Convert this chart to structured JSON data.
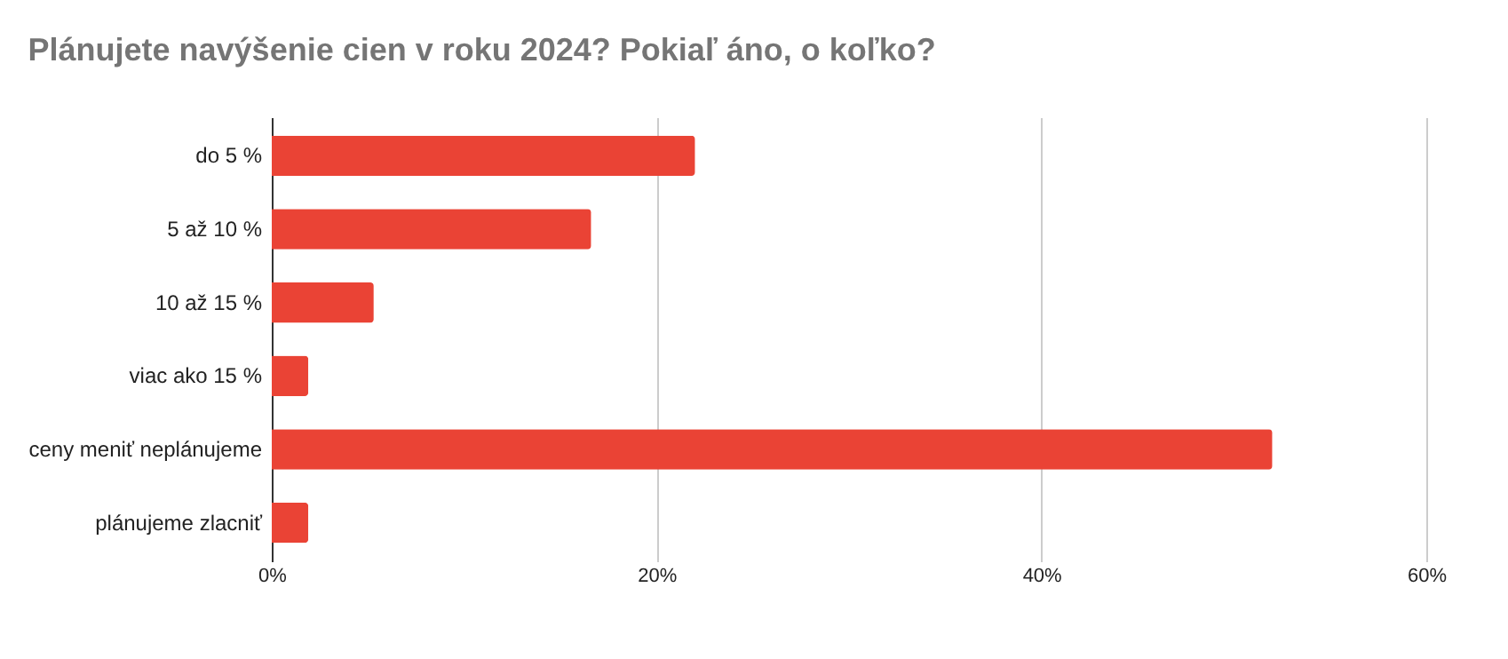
{
  "chart_data": {
    "type": "bar",
    "orientation": "horizontal",
    "title": "Plánujete navýšenie cien v roku 2024? Pokiaľ áno, o koľko?",
    "categories": [
      "do 5 %",
      "5 až 10 %",
      "10 až 15 %",
      "viac ako 15 %",
      "ceny meniť neplánujeme",
      "plánujeme zlacniť"
    ],
    "values": [
      22.0,
      16.6,
      5.3,
      1.9,
      52.0,
      1.9
    ],
    "color": "#ea4335",
    "xlim": [
      0,
      60
    ],
    "xticks": [
      {
        "value": 0,
        "label": "0%"
      },
      {
        "value": 20,
        "label": "20%"
      },
      {
        "value": 40,
        "label": "40%"
      },
      {
        "value": 60,
        "label": "60%"
      }
    ],
    "grid": "x"
  }
}
